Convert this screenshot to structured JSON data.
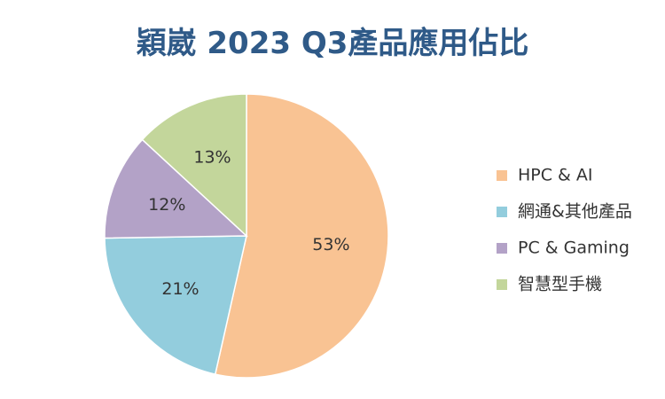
{
  "chart_data": {
    "type": "pie",
    "title": "穎崴 2023 Q3產品應用佔比",
    "legend_position": "right",
    "slices": [
      {
        "label": "HPC & AI",
        "value": 53,
        "display": "53%",
        "color": "#f9c393"
      },
      {
        "label": "網通&其他產品",
        "value": 21,
        "display": "21%",
        "color": "#93cddd"
      },
      {
        "label": "PC & Gaming",
        "value": 12,
        "display": "12%",
        "color": "#b3a2c7"
      },
      {
        "label": "智慧型手機",
        "value": 13,
        "display": "13%",
        "color": "#c3d69b"
      }
    ]
  }
}
